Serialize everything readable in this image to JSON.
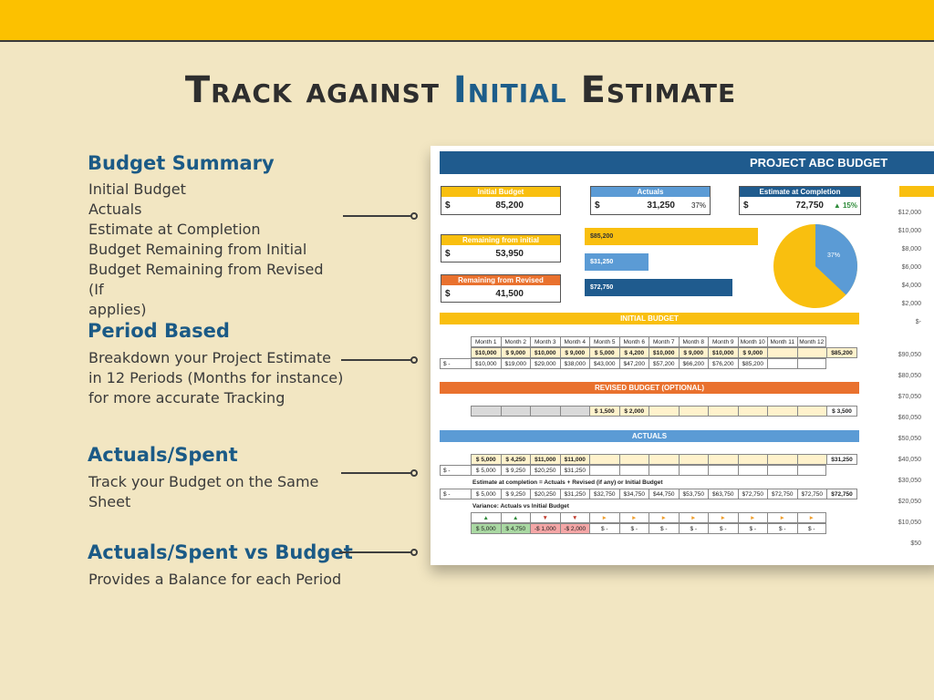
{
  "headline": {
    "part1": "Track against ",
    "highlight": "Initial",
    "part2": " Estimate"
  },
  "sections": [
    {
      "title": "Budget Summary",
      "lines": [
        "Initial Budget",
        "Actuals",
        "Estimate at Completion",
        "Budget Remaining from Initial",
        "Budget Remaining from Revised (If",
        "applies)"
      ]
    },
    {
      "title": "Period Based",
      "lines": [
        "Breakdown your Project Estimate",
        "in 12 Periods (Months for instance)",
        "for more accurate Tracking"
      ]
    },
    {
      "title": "Actuals/Spent",
      "lines": [
        "Track your Budget on the Same",
        "Sheet"
      ]
    },
    {
      "title": "Actuals/Spent vs Budget",
      "lines": [
        "Provides a Balance for each Period"
      ]
    }
  ],
  "sheet": {
    "title": "PROJECT ABC BUDGET",
    "currency": "$",
    "kpis": {
      "initial": {
        "label": "Initial Budget",
        "value": "85,200",
        "color": "#f9bf0f"
      },
      "actuals": {
        "label": "Actuals",
        "value": "31,250",
        "pct": "37%",
        "color": "#5b9bd5"
      },
      "eac": {
        "label": "Estimate at Completion",
        "value": "72,750",
        "pct": "15%",
        "color": "#1f5b8e"
      },
      "rem_initial": {
        "label": "Remaining from initial",
        "value": "53,950",
        "color": "#f9bf0f"
      },
      "rem_revised": {
        "label": "Remaining from Revised",
        "value": "41,500",
        "color": "#e9712e"
      }
    },
    "bars": [
      {
        "label": "$85,200",
        "color": "#f9bf0f"
      },
      {
        "label": "$31,250",
        "color": "#5b9bd5"
      },
      {
        "label": "$72,750",
        "color": "#1f5b8e"
      }
    ],
    "pie": {
      "slices": [
        {
          "pct": 37,
          "label": "37%",
          "color": "#5b9bd5"
        },
        {
          "pct": 63,
          "color": "#f9bf0f"
        }
      ]
    },
    "axis_top": [
      "$12,000",
      "$10,000",
      "$8,000",
      "$6,000",
      "$4,000",
      "$2,000",
      "$-"
    ],
    "axis_bottom": [
      "$90,050",
      "$80,050",
      "$70,050",
      "$60,050",
      "$50,050",
      "$40,050",
      "$30,050",
      "$20,050",
      "$10,050",
      "$50"
    ],
    "bands": {
      "initial": "INITIAL BUDGET",
      "revised": "REVISED BUDGET (OPTIONAL)",
      "actuals": "ACTUALS"
    },
    "months": [
      "Month 1",
      "Month 2",
      "Month 3",
      "Month 4",
      "Month 5",
      "Month 6",
      "Month 7",
      "Month 8",
      "Month 9",
      "Month 10",
      "Month 11",
      "Month 12"
    ],
    "initial_row": [
      "$10,000",
      "$ 9,000",
      "$10,000",
      "$ 9,000",
      "$ 5,000",
      "$ 4,200",
      "$10,000",
      "$ 9,000",
      "$10,000",
      "$ 9,000",
      "",
      ""
    ],
    "initial_total": "$85,200",
    "initial_cum": [
      "$10,000",
      "$19,000",
      "$29,000",
      "$38,000",
      "$43,000",
      "$47,200",
      "$57,200",
      "$66,200",
      "$76,200",
      "$85,200",
      "",
      ""
    ],
    "cum_currency": "$   -",
    "revised_row": [
      "",
      "",
      "",
      "",
      "$ 1,500",
      "$ 2,000",
      "",
      "",
      "",
      "",
      "",
      ""
    ],
    "revised_total": "$ 3,500",
    "actuals_row": [
      "$ 5,000",
      "$ 4,250",
      "$11,000",
      "$11,000",
      "",
      "",
      "",
      "",
      "",
      "",
      "",
      ""
    ],
    "actuals_total": "$31,250",
    "actuals_cum": [
      "$ 5,000",
      "$ 9,250",
      "$20,250",
      "$31,250",
      "",
      "",
      "",
      "",
      "",
      "",
      "",
      ""
    ],
    "eac_label": "Estimate at completion = Actuals + Revised (if any) or Initial Budget",
    "eac_row": [
      "$ 5,000",
      "$ 9,250",
      "$20,250",
      "$31,250",
      "$32,750",
      "$34,750",
      "$44,750",
      "$53,750",
      "$63,750",
      "$72,750",
      "$72,750",
      "$72,750"
    ],
    "eac_total": "$72,750",
    "variance_label": "Variance: Actuals vs Initial Budget",
    "variance_icons": [
      "up",
      "up",
      "down",
      "down",
      "side",
      "side",
      "side",
      "side",
      "side",
      "side",
      "side",
      "side"
    ],
    "variance_row": [
      "$ 5,000",
      "$ 4,750",
      "-$ 1,000",
      "-$ 2,000",
      "$   -",
      "$   -",
      "$   -",
      "$   -",
      "$   -",
      "$   -",
      "$   -",
      "$   -"
    ],
    "colors": {
      "blue_dark": "#1f5b8e",
      "blue": "#5b9bd5",
      "yellow": "#f9bf0f",
      "orange": "#e9712e",
      "green": "#2e8b3a",
      "red": "#c0392b"
    }
  }
}
